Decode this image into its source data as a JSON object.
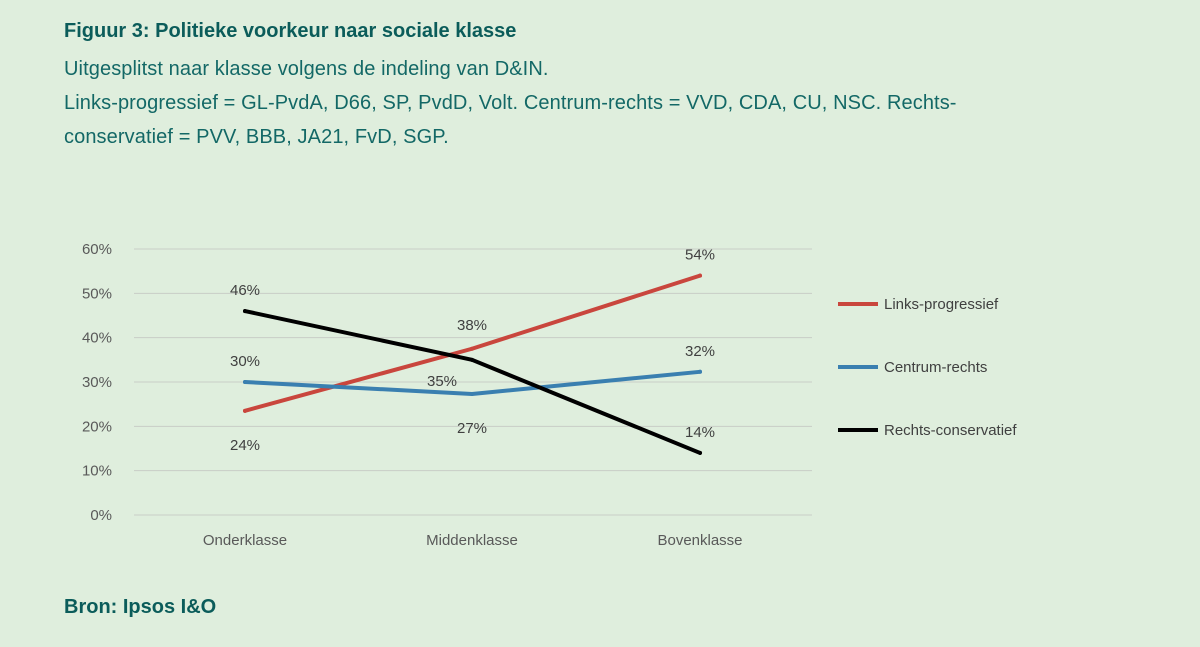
{
  "header": {
    "title": "Figuur 3: Politieke voorkeur naar sociale klasse",
    "subtitle_1": "Uitgesplitst naar klasse volgens de indeling van D&IN.",
    "subtitle_2": "Links-progressief = GL-PvdA, D66, SP, PvdD, Volt. Centrum-rechts = VVD, CDA, CU, NSC. Rechts-",
    "subtitle_3": "conservatief = PVV, BBB, JA21, FvD, SGP."
  },
  "footer": {
    "source": "Bron: Ipsos I&O"
  },
  "chart_data": {
    "type": "line",
    "title": "Figuur 3: Politieke voorkeur naar sociale klasse",
    "xlabel": "",
    "ylabel": "",
    "categories": [
      "Onderklasse",
      "Middenklasse",
      "Bovenklasse"
    ],
    "ylim": [
      0,
      60
    ],
    "yticks": [
      0,
      10,
      20,
      30,
      40,
      50,
      60
    ],
    "ytick_labels": [
      "0%",
      "10%",
      "20%",
      "30%",
      "40%",
      "50%",
      "60%"
    ],
    "grid": true,
    "legend_position": "right",
    "series": [
      {
        "name": "Links-progressief",
        "color": "#c9463d",
        "values": [
          23.5,
          37.5,
          54
        ],
        "labels": [
          "24%",
          "38%",
          "54%"
        ]
      },
      {
        "name": "Centrum-rechts",
        "color": "#3a7fb0",
        "values": [
          30,
          27.3,
          32.3
        ],
        "labels": [
          "30%",
          "27%",
          "32%"
        ]
      },
      {
        "name": "Rechts-conservatief",
        "color": "#000000",
        "values": [
          46,
          35,
          14
        ],
        "labels": [
          "46%",
          "35%",
          "14%"
        ]
      }
    ]
  }
}
